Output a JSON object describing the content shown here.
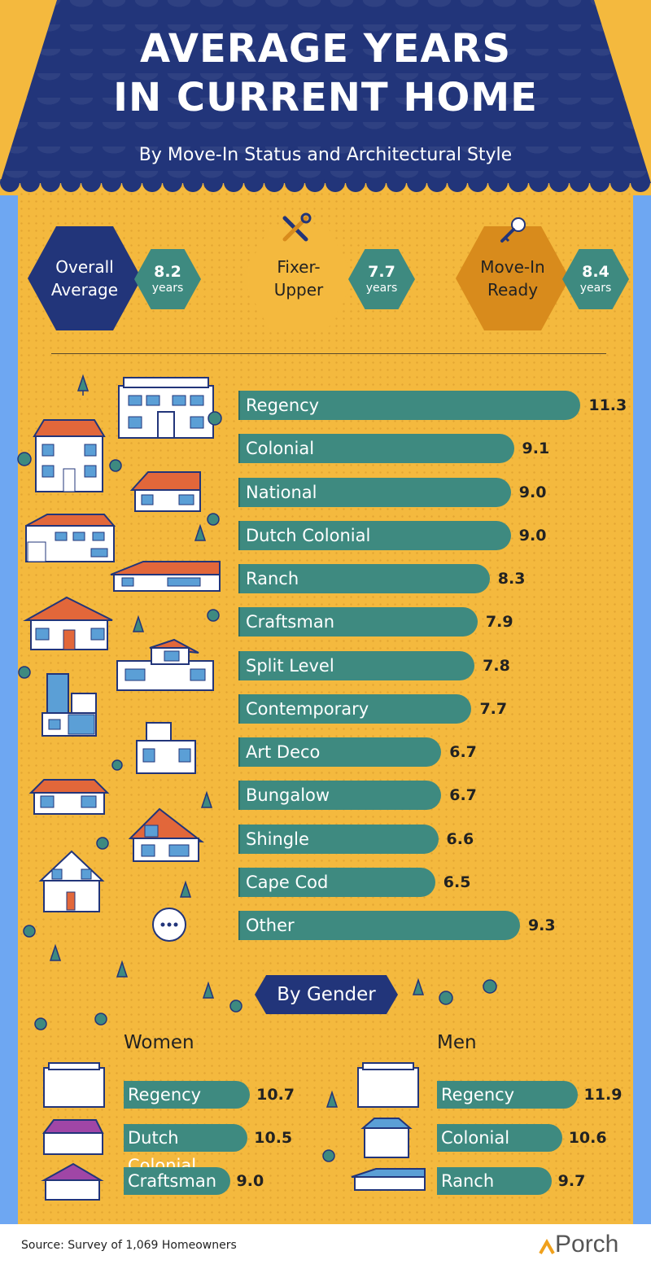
{
  "title": {
    "line1": "AVERAGE YEARS",
    "line2": "IN CURRENT HOME"
  },
  "subtitle": "By Move-In Status and Architectural Style",
  "summary": {
    "overall": {
      "label": "Overall\nAverage",
      "value": "8.2",
      "unit": "years"
    },
    "fixer": {
      "label": "Fixer-\nUpper",
      "value": "7.7",
      "unit": "years"
    },
    "movein": {
      "label": "Move-In\nReady",
      "value": "8.4",
      "unit": "years"
    }
  },
  "gender_heading": "By Gender",
  "women_label": "Women",
  "men_label": "Men",
  "source": "Source: Survey of 1,069 Homeowners",
  "brand": "Porch",
  "colors": {
    "navy": "#22357a",
    "teal": "#3e8a80",
    "yellow": "#f4b93e",
    "orange": "#d88b1c",
    "sky": "#6ea7f2"
  },
  "chart_data": [
    {
      "type": "bar",
      "orientation": "horizontal",
      "categories": [
        "Regency",
        "Colonial",
        "National",
        "Dutch Colonial",
        "Ranch",
        "Craftsman",
        "Split Level",
        "Contemporary",
        "Art Deco",
        "Bungalow",
        "Shingle",
        "Cape Cod",
        "Other"
      ],
      "values": [
        11.3,
        9.1,
        9.0,
        9.0,
        8.3,
        7.9,
        7.8,
        7.7,
        6.7,
        6.7,
        6.6,
        6.5,
        9.3
      ],
      "labels": [
        "11.3",
        "9.1",
        "9.0",
        "9.0",
        "8.3",
        "7.9",
        "7.8",
        "7.7",
        "6.7",
        "6.7",
        "6.6",
        "6.5",
        "9.3"
      ]
    },
    {
      "type": "bar",
      "orientation": "horizontal",
      "title": "Women",
      "categories": [
        "Regency",
        "Dutch Colonial",
        "Craftsman"
      ],
      "values": [
        10.7,
        10.5,
        9.0
      ],
      "labels": [
        "10.7",
        "10.5",
        "9.0"
      ]
    },
    {
      "type": "bar",
      "orientation": "horizontal",
      "title": "Men",
      "categories": [
        "Regency",
        "Colonial",
        "Ranch"
      ],
      "values": [
        11.9,
        10.6,
        9.7
      ],
      "labels": [
        "11.9",
        "10.6",
        "9.7"
      ]
    }
  ]
}
